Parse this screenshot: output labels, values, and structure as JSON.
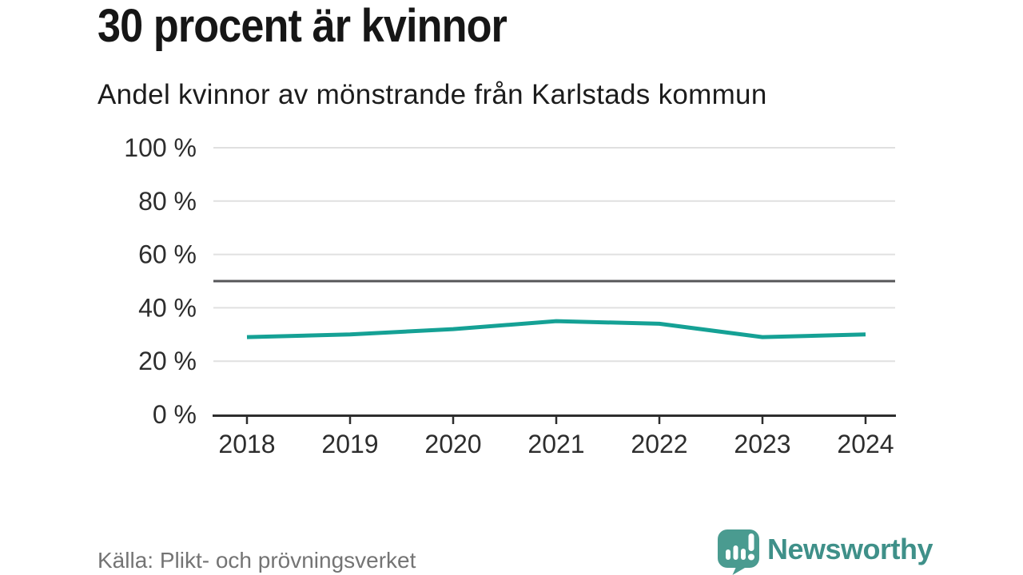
{
  "header": {
    "title": "30 procent är kvinnor",
    "subtitle": "Andel kvinnor av mönstrande från Karlstads kommun"
  },
  "footer": {
    "source": "Källa: Plikt- och prövningsverket",
    "brand": "Newsworthy"
  },
  "colors": {
    "line": "#15a195",
    "reference_line": "#565658",
    "gridline": "#e0e0e0",
    "axis": "#2d2d2d",
    "tick_label": "#2d2d2d",
    "title_text": "#161616",
    "subtitle_text": "#1c1c1c",
    "source_text": "#747474",
    "brand_icon": "#4a9b90",
    "brand_text": "#3f9089"
  },
  "chart_data": {
    "type": "line",
    "title": "30 procent är kvinnor",
    "subtitle": "Andel kvinnor av mönstrande från Karlstads kommun",
    "categories": [
      "2018",
      "2019",
      "2020",
      "2021",
      "2022",
      "2023",
      "2024"
    ],
    "series": [
      {
        "name": "Andel kvinnor av mönstrande",
        "values": [
          29,
          30,
          32,
          35,
          34,
          29,
          30
        ]
      }
    ],
    "unit": "%",
    "ylim": [
      0,
      100
    ],
    "yticks": [
      {
        "value": 100,
        "label": "100 %"
      },
      {
        "value": 80,
        "label": "80 %"
      },
      {
        "value": 60,
        "label": "60 %"
      },
      {
        "value": 40,
        "label": "40 %"
      },
      {
        "value": 20,
        "label": "20 %"
      },
      {
        "value": 0,
        "label": "0 %"
      }
    ],
    "reference_line": 50,
    "grid": "horizontal-only",
    "legend": "none",
    "xlabel": "",
    "ylabel": ""
  }
}
